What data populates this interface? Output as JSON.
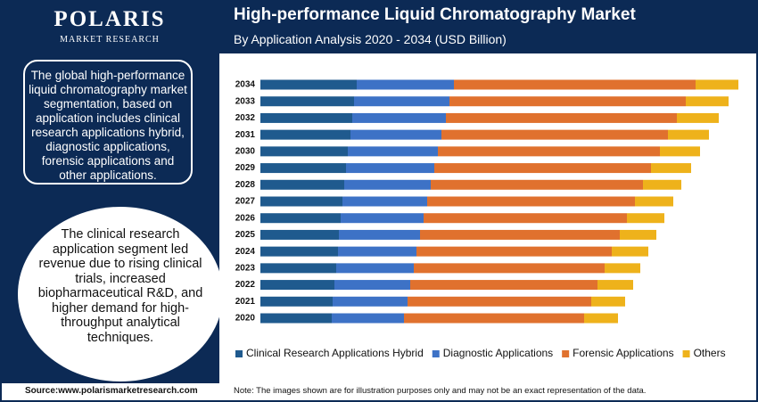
{
  "logo": {
    "name": "POLARIS",
    "tagline": "MARKET RESEARCH"
  },
  "summary": "The global high-performance liquid chromatography market segmentation, based on application includes clinical research applications hybrid, diagnostic applications, forensic applications and other applications.",
  "highlight": "The clinical research application segment led revenue due to rising clinical trials, increased biopharmaceutical R&D, and higher demand for high-throughput analytical techniques.",
  "source": "Source:www.polarismarketresearch.com",
  "note": "Note: The images shown are for illustration purposes only and may not be an exact representation of the data.",
  "chart_data": {
    "type": "bar",
    "orientation": "horizontal",
    "stacked": true,
    "title": "High-performance Liquid Chromatography Market",
    "subtitle": "By Application Analysis 2020 - 2034 (USD Billion)",
    "categories": [
      "2020",
      "2021",
      "2022",
      "2023",
      "2024",
      "2025",
      "2026",
      "2027",
      "2028",
      "2029",
      "2030",
      "2031",
      "2032",
      "2033",
      "2034"
    ],
    "xlim": [
      0,
      5.5
    ],
    "series": [
      {
        "name": "Clinical Research Applications Hybrid",
        "color": "#1f5a8e",
        "values": [
          0.8,
          0.81,
          0.83,
          0.85,
          0.87,
          0.88,
          0.9,
          0.92,
          0.94,
          0.96,
          0.98,
          1.01,
          1.03,
          1.05,
          1.08
        ]
      },
      {
        "name": "Diagnostic Applications",
        "color": "#3d72c6",
        "values": [
          0.81,
          0.84,
          0.85,
          0.87,
          0.88,
          0.91,
          0.93,
          0.95,
          0.97,
          0.99,
          1.01,
          1.02,
          1.05,
          1.07,
          1.09
        ]
      },
      {
        "name": "Forensic Applications",
        "color": "#e0712e",
        "values": [
          2.02,
          2.06,
          2.1,
          2.14,
          2.19,
          2.24,
          2.28,
          2.33,
          2.38,
          2.43,
          2.49,
          2.54,
          2.59,
          2.65,
          2.71
        ]
      },
      {
        "name": "Others",
        "color": "#eeb21b",
        "values": [
          0.38,
          0.38,
          0.4,
          0.4,
          0.41,
          0.41,
          0.42,
          0.43,
          0.43,
          0.45,
          0.45,
          0.46,
          0.47,
          0.48,
          0.48
        ]
      }
    ],
    "legend": "bottom"
  }
}
